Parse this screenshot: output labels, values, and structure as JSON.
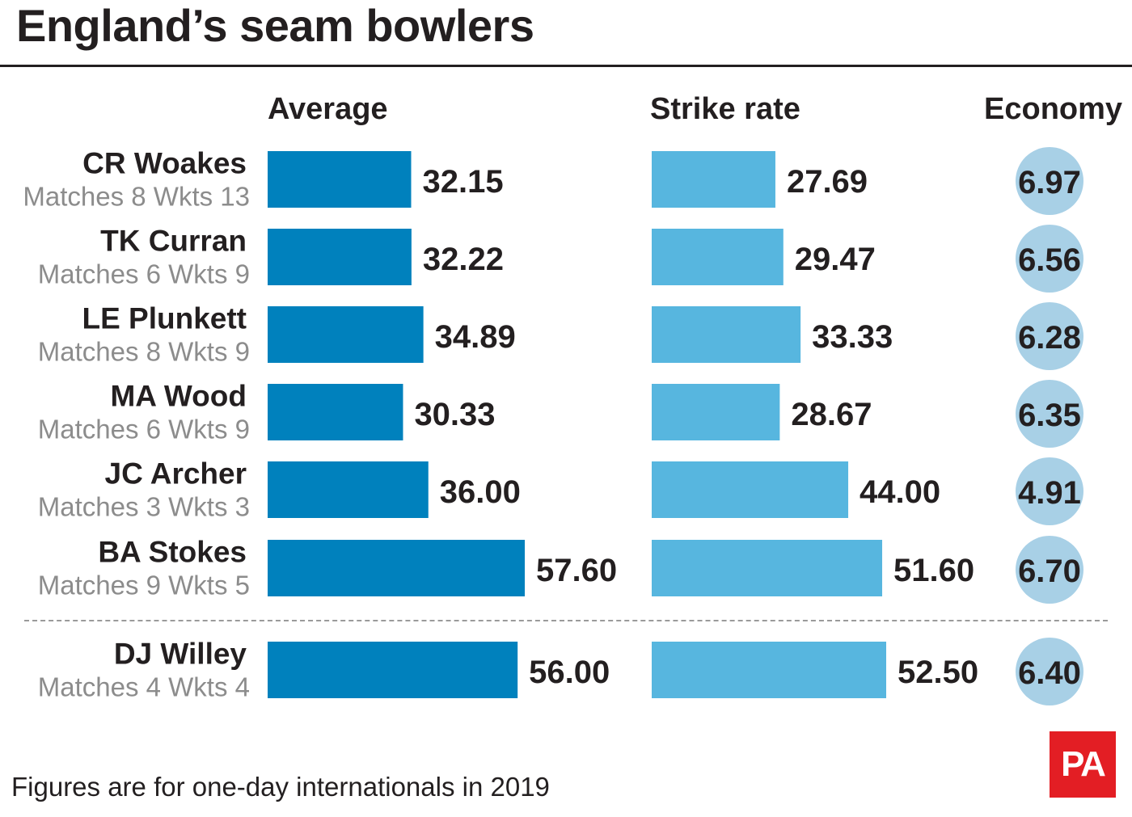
{
  "title": "England’s seam bowlers",
  "headers": {
    "average": "Average",
    "strike_rate": "Strike rate",
    "economy": "Economy"
  },
  "footnote": "Figures are for one-day internationals in 2019",
  "logo": "PA",
  "colors": {
    "average_bar": "#0081bd",
    "strike_rate_bar": "#57b6df",
    "economy_circle": "#a8d0e6",
    "text": "#231f20",
    "subtext": "#8c8c8c",
    "logo": "#e31e24"
  },
  "chart_data": {
    "type": "bar",
    "orientation": "horizontal",
    "title": "England’s seam bowlers",
    "categories": [
      "CR Woakes",
      "TK Curran",
      "LE Plunkett",
      "MA Wood",
      "JC Archer",
      "BA Stokes",
      "DJ Willey"
    ],
    "subtitles": [
      "Matches 8 Wkts 13",
      "Matches 6 Wkts 9",
      "Matches 8 Wkts 9",
      "Matches 6 Wkts 9",
      "Matches 3 Wkts 3",
      "Matches 9 Wkts 5",
      "Matches 4 Wkts 4"
    ],
    "series": [
      {
        "name": "Average",
        "values": [
          32.15,
          32.22,
          34.89,
          30.33,
          36.0,
          57.6,
          56.0
        ]
      },
      {
        "name": "Strike rate",
        "values": [
          27.69,
          29.47,
          33.33,
          28.67,
          44.0,
          51.6,
          52.5
        ]
      },
      {
        "name": "Economy",
        "values": [
          6.97,
          6.56,
          6.28,
          6.35,
          4.91,
          6.7,
          6.4
        ]
      }
    ],
    "labels": {
      "Average": [
        "32.15",
        "32.22",
        "34.89",
        "30.33",
        "36.00",
        "57.60",
        "56.00"
      ],
      "Strike rate": [
        "27.69",
        "29.47",
        "33.33",
        "28.67",
        "44.00",
        "51.60",
        "52.50"
      ],
      "Economy": [
        "6.97",
        "6.56",
        "6.28",
        "6.35",
        "4.91",
        "6.70",
        "6.40"
      ]
    },
    "separated_rows": [
      "DJ Willey"
    ],
    "grid": false,
    "legend": "none"
  }
}
